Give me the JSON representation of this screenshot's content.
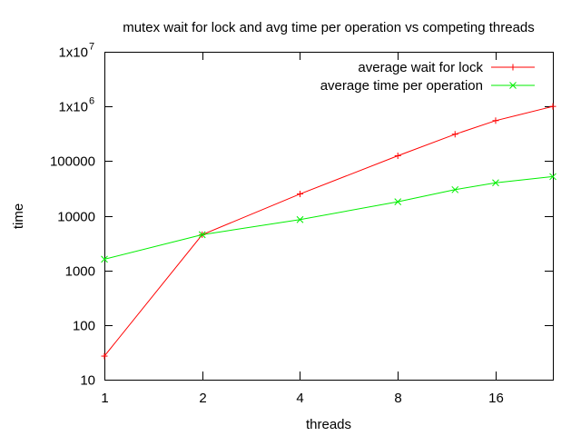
{
  "chart_data": {
    "type": "line",
    "title": "mutex wait for lock and avg time per operation vs competing threads",
    "xlabel": "threads",
    "ylabel": "time",
    "x_scale": "log2",
    "y_scale": "log10",
    "xlim": [
      1,
      24
    ],
    "ylim": [
      10,
      10000000
    ],
    "x_ticks": [
      {
        "value": 1,
        "label": "1"
      },
      {
        "value": 2,
        "label": "2"
      },
      {
        "value": 4,
        "label": "4"
      },
      {
        "value": 8,
        "label": "8"
      },
      {
        "value": 16,
        "label": "16"
      }
    ],
    "y_ticks": [
      {
        "value": 10,
        "label": "10"
      },
      {
        "value": 100,
        "label": "100"
      },
      {
        "value": 1000,
        "label": "1000"
      },
      {
        "value": 10000,
        "label": "10000"
      },
      {
        "value": 100000,
        "label": "100000"
      },
      {
        "value": 1000000,
        "label": "1x10",
        "sup": "6"
      },
      {
        "value": 10000000,
        "label": "1x10",
        "sup": "7"
      }
    ],
    "legend_position": "top-right",
    "grid": false,
    "series": [
      {
        "name": "average wait for lock",
        "color": "#ff0000",
        "marker": "plus",
        "x": [
          1,
          2,
          4,
          8,
          12,
          16,
          24
        ],
        "y": [
          27,
          4500,
          25000,
          125000,
          310000,
          550000,
          1000000
        ]
      },
      {
        "name": "average time per operation",
        "color": "#00ee00",
        "marker": "cross",
        "x": [
          1,
          2,
          4,
          8,
          12,
          16,
          24
        ],
        "y": [
          1600,
          4500,
          8500,
          18000,
          30000,
          40000,
          52000
        ]
      }
    ]
  }
}
